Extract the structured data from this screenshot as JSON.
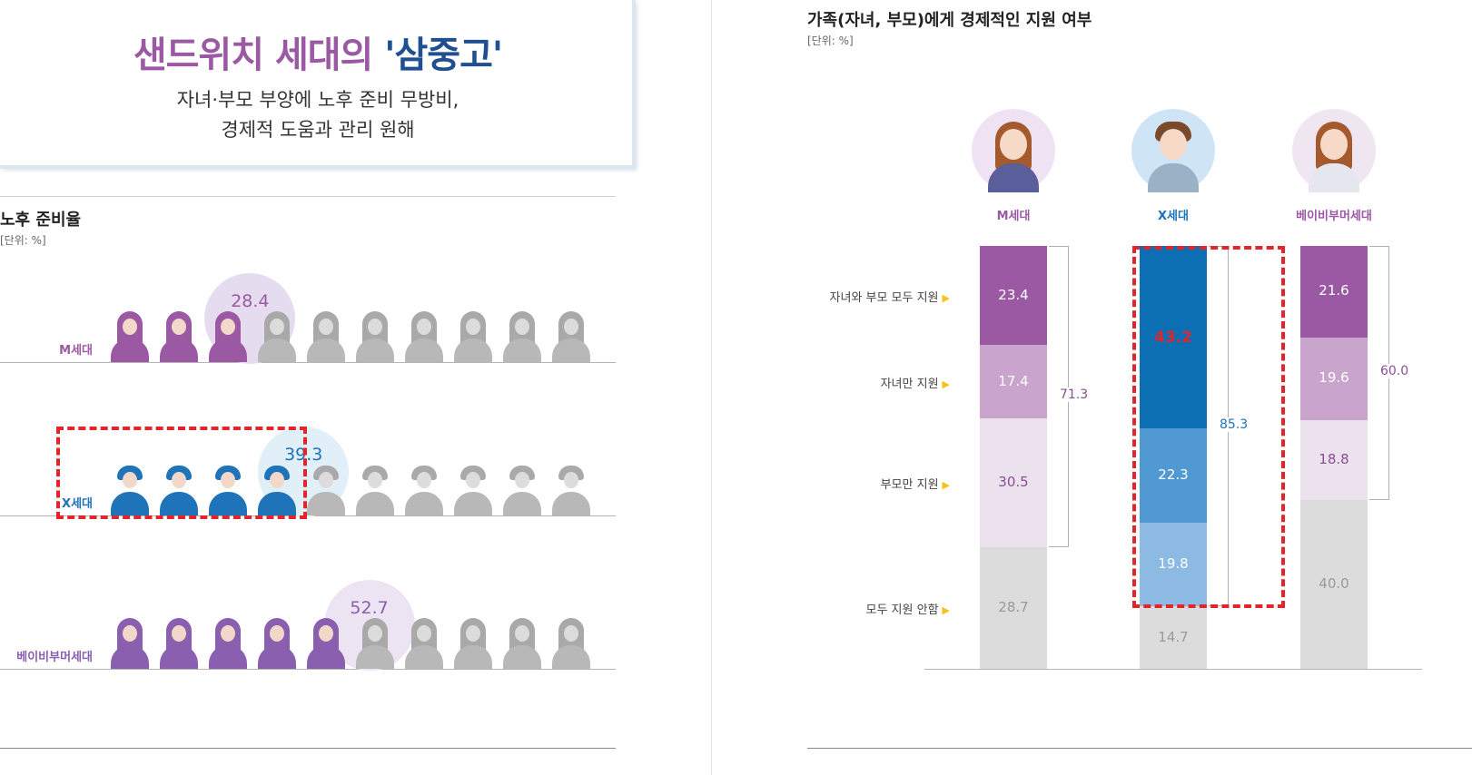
{
  "header": {
    "title_main": "샌드위치 세대의 ",
    "title_highlight": "'삼중고'",
    "subtitle_line1": "자녀·부모 부양에 노후 준비 무방비,",
    "subtitle_line2": "경제적 도움과 관리 원해"
  },
  "colors": {
    "m_gen": "#9b59a4",
    "x_gen": "#1e73b9",
    "boomer": "#9b59a4",
    "inactive": "#b8b8b8",
    "highlight_box": "#e3242b"
  },
  "chart_data": [
    {
      "type": "pictograph",
      "title": "노후 준비율",
      "unit": "[단위: %]",
      "icons_per_row": 10,
      "series": [
        {
          "name": "M세대",
          "value": 28.4,
          "value_label": "28.4",
          "icon": "woman-icon"
        },
        {
          "name": "X세대",
          "value": 39.3,
          "value_label": "39.3",
          "icon": "man-icon",
          "highlighted": true
        },
        {
          "name": "베이비부머세대",
          "value": 52.7,
          "value_label": "52.7",
          "icon": "senior-woman-icon"
        }
      ]
    },
    {
      "type": "stacked-bar",
      "title": "가족(자녀, 부모)에게 경제적인 지원 여부",
      "unit": "[단위: %]",
      "categories": [
        "자녀와 부모 모두 지원",
        "자녀만 지원",
        "부모만 지원",
        "모두 지원 안함"
      ],
      "groups": [
        {
          "name": "M세대",
          "values": [
            23.4,
            17.4,
            30.5,
            28.7
          ],
          "labels": [
            "23.4",
            "17.4",
            "30.5",
            "28.7"
          ],
          "total_support": "71.3",
          "total_value": 71.3,
          "scheme": "purple"
        },
        {
          "name": "X세대",
          "values": [
            43.2,
            22.3,
            19.8,
            14.7
          ],
          "labels": [
            "43.2",
            "22.3",
            "19.8",
            "14.7"
          ],
          "total_support": "85.3",
          "total_value": 85.3,
          "scheme": "blue",
          "highlighted": true
        },
        {
          "name": "베이비부머세대",
          "values": [
            21.6,
            19.6,
            18.8,
            40.0
          ],
          "labels": [
            "21.6",
            "19.6",
            "18.8",
            "40.0"
          ],
          "total_support": "60.0",
          "total_value": 60.0,
          "scheme": "purple"
        }
      ]
    }
  ]
}
